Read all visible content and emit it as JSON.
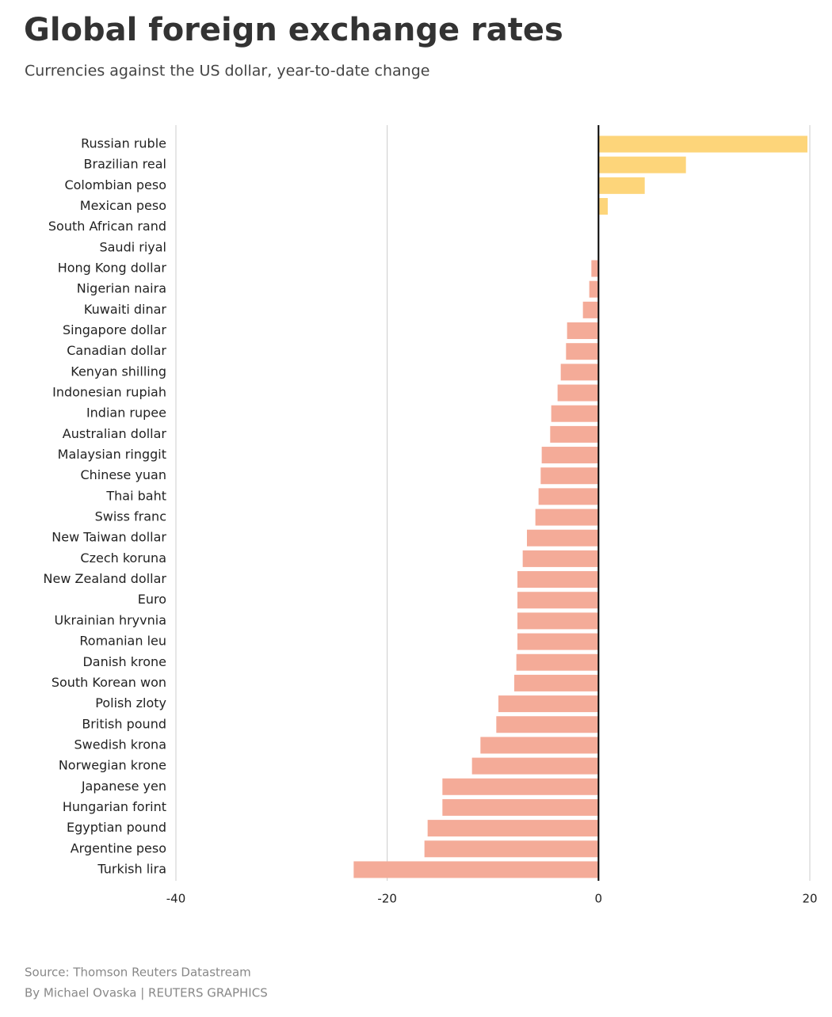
{
  "chart_data": {
    "type": "hbar",
    "title": "Global foreign exchange rates",
    "subtitle": "Currencies against the US dollar, year-to-date change",
    "source": "Source: Thomson Reuters Datastream",
    "byline": "By Michael Ovaska | REUTERS GRAPHICS",
    "categories": [
      "Russian ruble",
      "Brazilian real",
      "Colombian peso",
      "Mexican peso",
      "South African rand",
      "Saudi riyal",
      "Hong Kong dollar",
      "Nigerian naira",
      "Kuwaiti dinar",
      "Singapore dollar",
      "Canadian dollar",
      "Kenyan shilling",
      "Indonesian rupiah",
      "Indian rupee",
      "Australian dollar",
      "Malaysian ringgit",
      "Chinese yuan",
      "Thai baht",
      "Swiss franc",
      "New Taiwan dollar",
      "Czech koruna",
      "New Zealand dollar",
      "Euro",
      "Ukrainian hryvnia",
      "Romanian leu",
      "Danish krone",
      "South Korean won",
      "Polish zloty",
      "British pound",
      "Swedish krona",
      "Norwegian krone",
      "Japanese yen",
      "Hungarian forint",
      "Egyptian pound",
      "Argentine peso",
      "Turkish lira"
    ],
    "values": [
      19.7,
      8.2,
      4.3,
      0.8,
      0,
      0,
      -0.6,
      -0.8,
      -1.4,
      -2.9,
      -3.0,
      -3.5,
      -3.8,
      -4.4,
      -4.5,
      -5.3,
      -5.4,
      -5.6,
      -5.9,
      -6.7,
      -7.1,
      -7.6,
      -7.6,
      -7.6,
      -7.6,
      -7.7,
      -7.9,
      -9.4,
      -9.6,
      -11.1,
      -11.9,
      -14.7,
      -14.7,
      -16.1,
      -16.4,
      -23.1
    ],
    "positive_color": "#fdd57a",
    "negative_color": "#f4ab98",
    "xlim": [
      -40,
      20
    ],
    "xticks": [
      -40,
      -20,
      0,
      20
    ],
    "grid": true
  }
}
